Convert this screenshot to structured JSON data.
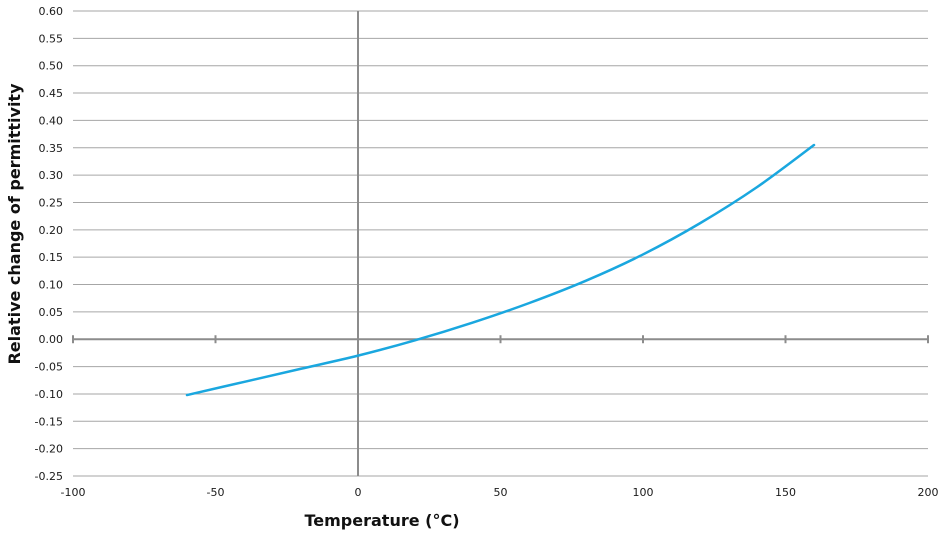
{
  "chart_data": {
    "type": "line",
    "title": "",
    "xlabel": "Temperature (°C)",
    "ylabel": "Relative change of permittivity",
    "xlim": [
      -100,
      200
    ],
    "ylim": [
      -0.25,
      0.6
    ],
    "x_ticks": [
      -100,
      -50,
      0,
      50,
      100,
      150,
      200
    ],
    "x_tick_labels": [
      "-100",
      "-50",
      "0",
      "50",
      "100",
      "150",
      "200"
    ],
    "y_ticks": [
      -0.25,
      -0.2,
      -0.15,
      -0.1,
      -0.05,
      0.0,
      0.05,
      0.1,
      0.15,
      0.2,
      0.25,
      0.3,
      0.35,
      0.4,
      0.45,
      0.5,
      0.55,
      0.6
    ],
    "y_tick_labels": [
      "-0.25",
      "-0.20",
      "-0.15",
      "-0.10",
      "-0.05",
      "0.00",
      "0.05",
      "0.10",
      "0.15",
      "0.20",
      "0.25",
      "0.30",
      "0.35",
      "0.40",
      "0.45",
      "0.50",
      "0.55",
      "0.60"
    ],
    "grid": "horizontal",
    "legend": "none",
    "series": [
      {
        "color": "#1aa7df",
        "x": [
          -60,
          -40,
          -20,
          0,
          20,
          40,
          60,
          80,
          100,
          120,
          140,
          160
        ],
        "y": [
          -0.102,
          -0.078,
          -0.054,
          -0.03,
          -0.002,
          0.03,
          0.066,
          0.107,
          0.155,
          0.212,
          0.278,
          0.355
        ]
      }
    ]
  },
  "colors": {
    "grid": "#a6a6a6",
    "axis": "#8c8c8c",
    "line": "#1aa7df"
  }
}
